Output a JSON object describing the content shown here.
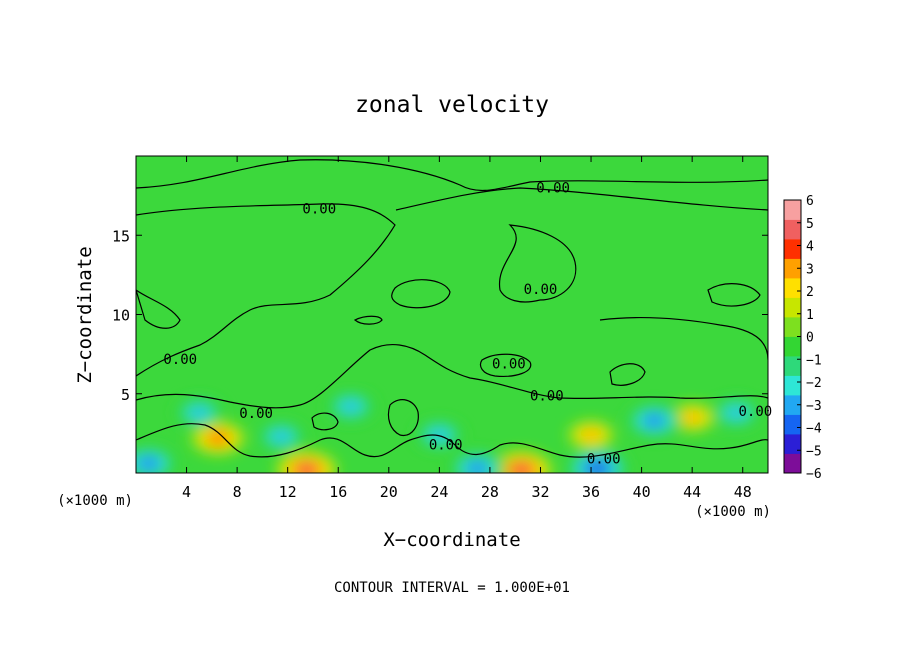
{
  "chart_data": {
    "type": "contour",
    "title": "zonal velocity",
    "xlabel": "X−coordinate",
    "ylabel": "Z−coordinate",
    "x_unit_left": "(×1000 m)",
    "x_unit_right": "(×1000 m)",
    "footer": "CONTOUR INTERVAL = 1.000E+01",
    "xlim": [
      0,
      50
    ],
    "ylim": [
      0,
      20
    ],
    "x_ticks": [
      4,
      8,
      12,
      16,
      20,
      24,
      28,
      32,
      36,
      40,
      44,
      48
    ],
    "y_ticks": [
      5,
      10,
      15
    ],
    "contour_labels": [
      {
        "text": "0.00",
        "x": 14.5,
        "y": 16.7
      },
      {
        "text": "0.00",
        "x": 33.0,
        "y": 18.0
      },
      {
        "text": "0.00",
        "x": 32.0,
        "y": 11.6
      },
      {
        "text": "0.00",
        "x": 3.5,
        "y": 7.2
      },
      {
        "text": "0.00",
        "x": 29.5,
        "y": 6.9
      },
      {
        "text": "0.00",
        "x": 9.5,
        "y": 3.8
      },
      {
        "text": "0.00",
        "x": 32.5,
        "y": 4.9
      },
      {
        "text": "0.00",
        "x": 24.5,
        "y": 1.8
      },
      {
        "text": "0.00",
        "x": 37.0,
        "y": 0.9
      },
      {
        "text": "0.00",
        "x": 49.0,
        "y": 3.9
      }
    ],
    "colorbar": {
      "min": -6,
      "max": 6,
      "tick_labels": [
        "6",
        "5",
        "4",
        "3",
        "2",
        "1",
        "0",
        "−1",
        "−2",
        "−3",
        "−4",
        "−5",
        "−6"
      ],
      "colors": [
        "#7d0d99",
        "#2b1fd6",
        "#1565f2",
        "#21a8f2",
        "#2ee6d6",
        "#2ed97a",
        "#33d633",
        "#7de01f",
        "#c7e600",
        "#ffe000",
        "#ffa000",
        "#ff3000",
        "#f06060",
        "#f7a0a0"
      ]
    },
    "features": [
      {
        "x": 6.5,
        "y": 2.2,
        "value": 4
      },
      {
        "x": 13.5,
        "y": 0.2,
        "value": 5
      },
      {
        "x": 30.5,
        "y": 0.2,
        "value": 5
      },
      {
        "x": 36.0,
        "y": 2.4,
        "value": 3
      },
      {
        "x": 44.0,
        "y": 3.5,
        "value": 3
      },
      {
        "x": 5.0,
        "y": 3.8,
        "value": -3
      },
      {
        "x": 11.5,
        "y": 2.3,
        "value": -3
      },
      {
        "x": 24.0,
        "y": 2.4,
        "value": -3
      },
      {
        "x": 41.0,
        "y": 3.3,
        "value": -4
      },
      {
        "x": 47.5,
        "y": 3.8,
        "value": -3
      },
      {
        "x": 1.0,
        "y": 0.6,
        "value": -4
      },
      {
        "x": 36.5,
        "y": 0.3,
        "value": -5
      },
      {
        "x": 27.0,
        "y": 0.3,
        "value": -4
      },
      {
        "x": 17.0,
        "y": 4.2,
        "value": -3
      }
    ]
  }
}
